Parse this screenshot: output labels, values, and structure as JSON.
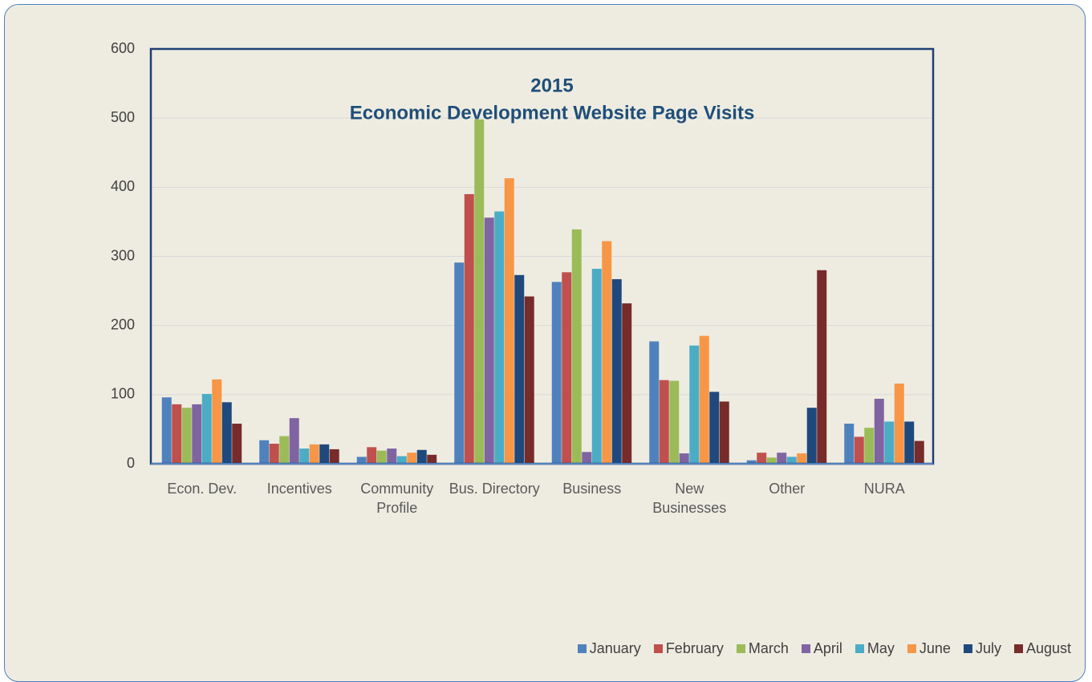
{
  "chart_data": {
    "type": "bar",
    "title": [
      "2015",
      "Economic Development Website Page Visits"
    ],
    "categories": [
      "Econ. Dev.",
      "Incentives",
      "Community Profile",
      "Bus. Directory",
      "Business",
      "New Businesses",
      "Other",
      "NURA"
    ],
    "series": [
      {
        "name": "January",
        "color": "#4f81bd",
        "values": [
          96,
          34,
          10,
          291,
          263,
          177,
          5,
          58
        ]
      },
      {
        "name": "February",
        "color": "#c0504d",
        "values": [
          86,
          29,
          24,
          390,
          277,
          121,
          16,
          39
        ]
      },
      {
        "name": "March",
        "color": "#9bbb59",
        "values": [
          81,
          40,
          19,
          498,
          339,
          120,
          9,
          52
        ]
      },
      {
        "name": "April",
        "color": "#8064a2",
        "values": [
          86,
          66,
          22,
          356,
          17,
          15,
          16,
          94
        ]
      },
      {
        "name": "May",
        "color": "#4bacc6",
        "values": [
          101,
          22,
          11,
          365,
          282,
          171,
          10,
          61
        ]
      },
      {
        "name": "June",
        "color": "#f79646",
        "values": [
          122,
          28,
          16,
          413,
          322,
          185,
          15,
          116
        ]
      },
      {
        "name": "July",
        "color": "#1f497d",
        "values": [
          89,
          28,
          20,
          273,
          267,
          104,
          81,
          61
        ]
      },
      {
        "name": "August",
        "color": "#772c2a",
        "values": [
          58,
          21,
          13,
          242,
          232,
          90,
          280,
          33
        ]
      }
    ],
    "ylim": [
      0,
      600
    ],
    "yticks": [
      0,
      100,
      200,
      300,
      400,
      500,
      600
    ],
    "grid": true,
    "legend": "bottom-right"
  }
}
